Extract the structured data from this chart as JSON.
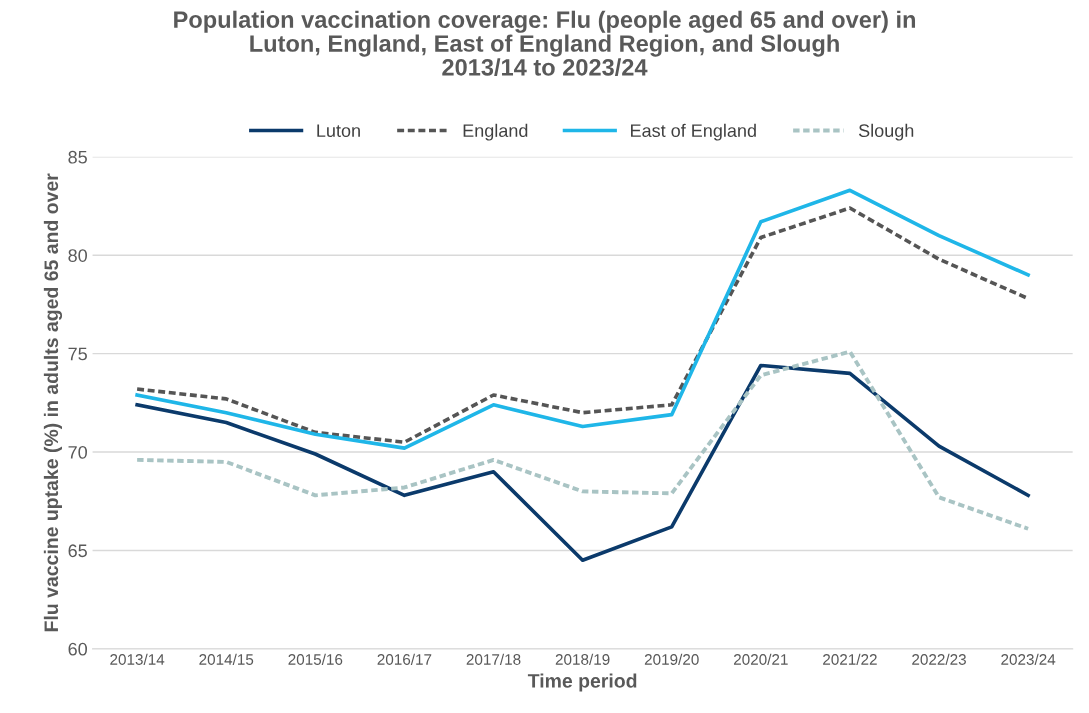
{
  "chart_data": {
    "type": "line",
    "title": "Population vaccination coverage: Flu (people aged 65 and over) in\nLuton, England, East of England Region, and Slough\n2013/14 to 2023/24",
    "xlabel": "Time period",
    "ylabel": "Flu vaccine uptake (%) in adults aged 65 and over",
    "categories": [
      "2013/14",
      "2014/15",
      "2015/16",
      "2016/17",
      "2017/18",
      "2018/19",
      "2019/20",
      "2020/21",
      "2021/22",
      "2022/23",
      "2023/24"
    ],
    "series": [
      {
        "name": "Luton",
        "color": "#0b3a6b",
        "line_style": "solid",
        "values": [
          72.4,
          71.5,
          69.9,
          67.8,
          69.0,
          64.5,
          66.2,
          74.4,
          74.0,
          70.3,
          67.8
        ]
      },
      {
        "name": "England",
        "color": "#555555",
        "line_style": "dotted",
        "values": [
          73.2,
          72.7,
          71.0,
          70.5,
          72.9,
          72.0,
          72.4,
          80.9,
          82.4,
          79.8,
          77.8
        ]
      },
      {
        "name": "East of England",
        "color": "#1fb6e8",
        "line_style": "solid",
        "values": [
          72.9,
          72.0,
          70.9,
          70.2,
          72.4,
          71.3,
          71.9,
          81.7,
          83.3,
          81.0,
          79.0
        ]
      },
      {
        "name": "Slough",
        "color": "#a9c4c4",
        "line_style": "dashed",
        "values": [
          69.6,
          69.5,
          67.8,
          68.2,
          69.6,
          68.0,
          67.9,
          73.9,
          75.1,
          67.7,
          66.1
        ]
      }
    ],
    "ylim": [
      60,
      85
    ],
    "yticks": [
      60,
      65,
      70,
      75,
      80,
      85
    ],
    "grid": "y",
    "legend": "top"
  }
}
